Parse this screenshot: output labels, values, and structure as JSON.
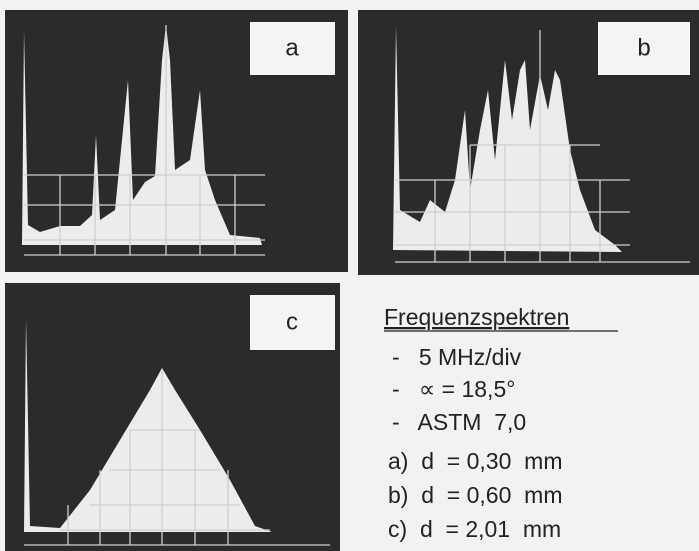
{
  "panels": [
    {
      "label": "a"
    },
    {
      "label": "b"
    },
    {
      "label": "c"
    }
  ],
  "legend": {
    "title": "Frequenzspektren",
    "lines": [
      "-   5 MHz/div",
      "-   ∝ = 18,5°",
      "-   ASTM  7,0",
      "a)  d  = 0,30  mm",
      "b)  d  = 0,60  mm",
      "c)  d  = 2,01  mm"
    ]
  }
}
